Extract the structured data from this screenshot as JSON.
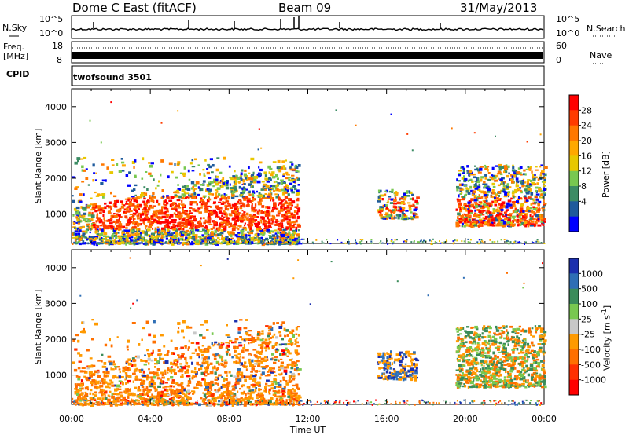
{
  "header": {
    "title": "Dome C East (fitACF)",
    "beam": "Beam 09",
    "date": "31/May/2013"
  },
  "strips": {
    "nsky_label": "N.Sky",
    "nsearch_label": "N.Search",
    "nsky_ticks": [
      "10^5",
      "10^0"
    ],
    "nsearch_ticks": [
      "10^5",
      "10^0"
    ],
    "freq_label_1": "Freq.",
    "freq_label_2": "[MHz]",
    "freq_ticks": [
      "18",
      "8"
    ],
    "nave_label": "Nave",
    "nave_ticks": [
      "60",
      "0"
    ],
    "cpid_label": "CPID",
    "cpid_value": "twofsound 3501"
  },
  "axes": {
    "ylabel": "Slant Range [km]",
    "xlabel": "Time UT",
    "x_ticks": [
      "00:00",
      "04:00",
      "08:00",
      "12:00",
      "16:00",
      "20:00",
      "00:00"
    ],
    "y_ticks": [
      "4000",
      "3000",
      "2000",
      "1000"
    ]
  },
  "colorbars": {
    "power": {
      "label": "Power [dB]",
      "ticks": [
        "28",
        "24",
        "20",
        "16",
        "12",
        "8",
        "4"
      ],
      "colors": [
        "#ff0000",
        "#ff3c00",
        "#ff7800",
        "#ffa800",
        "#e8c800",
        "#78c850",
        "#3c8c64",
        "#1e5a9c",
        "#0000ff"
      ]
    },
    "velocity": {
      "label": "Velocity [m s",
      "label_sup": "-1",
      "label_end": "]",
      "ticks": [
        "1000",
        "500",
        "100",
        "25",
        "-25",
        "-100",
        "-500",
        "-1000"
      ],
      "colors": [
        "#1b2fae",
        "#2e6eb5",
        "#3a8c5a",
        "#78c850",
        "#c8c8c8",
        "#ff9a00",
        "#ff7000",
        "#ff3000",
        "#ff0000"
      ]
    }
  },
  "chart_data": [
    {
      "type": "heatmap",
      "name": "Power",
      "x_range": [
        "00:00",
        "24:00"
      ],
      "ylim": [
        180,
        4500
      ],
      "regions": [
        {
          "t0": 0.0,
          "t1": 11.5,
          "r0": 200,
          "r1": 2600,
          "peak_db": 28,
          "core": [
            1.0,
            11.5,
            600,
            1500
          ]
        },
        {
          "t0": 15.5,
          "t1": 17.5,
          "r0": 900,
          "r1": 1700,
          "peak_db": 24
        },
        {
          "t0": 19.5,
          "t1": 24.0,
          "r0": 700,
          "r1": 2400,
          "peak_db": 28
        }
      ],
      "range_units": "km",
      "value_units": "dB"
    },
    {
      "type": "heatmap",
      "name": "Velocity",
      "x_range": [
        "00:00",
        "24:00"
      ],
      "ylim": [
        180,
        4500
      ],
      "regions": [
        {
          "t0": 0.0,
          "t1": 11.5,
          "r0": 200,
          "r1": 2600,
          "dominant_velocity": -100
        },
        {
          "t0": 15.5,
          "t1": 17.5,
          "r0": 900,
          "r1": 1700,
          "dominant_velocity": 500
        },
        {
          "t0": 19.5,
          "t1": 24.0,
          "r0": 700,
          "r1": 2400,
          "dominant_velocity": 100
        }
      ],
      "range_units": "km",
      "value_units": "m/s"
    }
  ]
}
